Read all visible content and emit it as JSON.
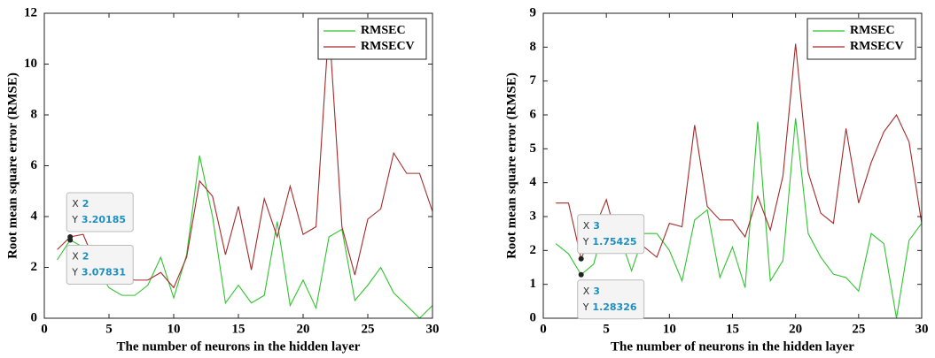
{
  "chart_data": [
    {
      "type": "line",
      "xlabel": "The number of neurons in the hidden layer",
      "ylabel": "Root mean square error (RMSE)",
      "x": [
        1,
        2,
        3,
        4,
        5,
        6,
        7,
        8,
        9,
        10,
        11,
        12,
        13,
        14,
        15,
        16,
        17,
        18,
        19,
        20,
        21,
        22,
        23,
        24,
        25,
        26,
        27,
        28,
        29,
        30
      ],
      "series": [
        {
          "name": "RMSEC",
          "color": "#2fc42f",
          "values": [
            2.3,
            3.07831,
            2.8,
            2.0,
            1.2,
            0.9,
            0.9,
            1.3,
            2.4,
            0.8,
            2.5,
            6.4,
            4.0,
            0.6,
            1.3,
            0.6,
            0.9,
            3.8,
            0.5,
            1.5,
            0.4,
            3.2,
            3.5,
            0.7,
            1.3,
            2.0,
            1.0,
            0.5,
            0.0,
            0.5
          ]
        },
        {
          "name": "RMSECV",
          "color": "#a52a2a",
          "values": [
            2.7,
            3.20185,
            3.3,
            2.1,
            1.8,
            1.6,
            1.5,
            1.5,
            1.8,
            1.2,
            2.4,
            5.4,
            4.8,
            2.5,
            4.4,
            1.9,
            4.7,
            3.2,
            5.2,
            3.3,
            3.6,
            11.6,
            3.6,
            1.7,
            3.9,
            4.3,
            6.5,
            5.7,
            5.7,
            4.2
          ]
        }
      ],
      "xlim": [
        0,
        30
      ],
      "xticks": [
        0,
        5,
        10,
        15,
        20,
        25,
        30
      ],
      "ylim": [
        0,
        12
      ],
      "yticks": [
        0,
        2,
        4,
        6,
        8,
        10,
        12
      ],
      "legend": "upper right",
      "datatip_prefixes": [
        "X",
        "Y"
      ],
      "datatips": [
        {
          "x": 2,
          "y": 3.20185
        },
        {
          "x": 2,
          "y": 3.07831
        }
      ]
    },
    {
      "type": "line",
      "xlabel": "The number of neurons in the hidden layer",
      "ylabel": "Root mean square error (RMSE)",
      "x": [
        1,
        2,
        3,
        4,
        5,
        6,
        7,
        8,
        9,
        10,
        11,
        12,
        13,
        14,
        15,
        16,
        17,
        18,
        19,
        20,
        21,
        22,
        23,
        24,
        25,
        26,
        27,
        28,
        29,
        30
      ],
      "series": [
        {
          "name": "RMSEC",
          "color": "#2fc42f",
          "values": [
            2.2,
            1.9,
            1.28326,
            1.6,
            3.0,
            2.5,
            1.4,
            2.5,
            2.5,
            2.0,
            1.1,
            2.9,
            3.2,
            1.2,
            2.1,
            0.9,
            5.8,
            1.1,
            1.7,
            5.9,
            2.5,
            1.8,
            1.3,
            1.2,
            0.8,
            2.5,
            2.2,
            0.0,
            2.3,
            2.8
          ]
        },
        {
          "name": "RMSECV",
          "color": "#a52a2a",
          "values": [
            3.4,
            3.4,
            1.75425,
            2.6,
            3.5,
            2.1,
            2.3,
            2.1,
            1.8,
            2.8,
            2.7,
            5.7,
            3.3,
            2.9,
            2.9,
            2.4,
            3.6,
            2.6,
            4.2,
            8.1,
            4.3,
            3.1,
            2.8,
            5.6,
            3.4,
            4.6,
            5.5,
            6.0,
            5.2,
            2.8
          ]
        }
      ],
      "xlim": [
        0,
        30
      ],
      "xticks": [
        0,
        5,
        10,
        15,
        20,
        25,
        30
      ],
      "ylim": [
        0,
        9
      ],
      "yticks": [
        0,
        1,
        2,
        3,
        4,
        5,
        6,
        7,
        8,
        9
      ],
      "legend": "upper right",
      "datatip_prefixes": [
        "X",
        "Y"
      ],
      "datatips": [
        {
          "x": 3,
          "y": 1.75425
        },
        {
          "x": 3,
          "y": 1.28326
        }
      ]
    }
  ]
}
